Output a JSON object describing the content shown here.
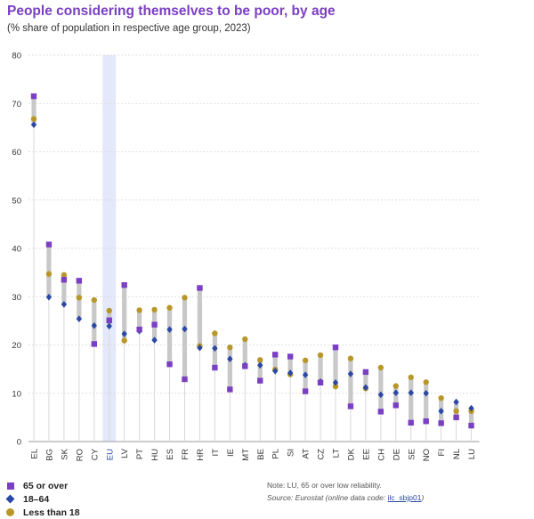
{
  "title": "People considering themselves to be poor, by age",
  "subtitle": "(% share of population in respective age group, 2023)",
  "colors": {
    "over65": "#7a3fc3",
    "age18_64": "#2b48a6",
    "under18": "#b8972a",
    "range": "#c8c8c8",
    "eu_highlight": "#e4e8fb",
    "eu_label": "#2b48a6"
  },
  "legend": [
    {
      "label": "65 or over",
      "shape": "square"
    },
    {
      "label": "18–64",
      "shape": "diamond"
    },
    {
      "label": "Less than 18",
      "shape": "circle"
    }
  ],
  "notes": {
    "note": "Note: LU, 65 or over low reliability.",
    "source_prefix": "Source: Eurostat (online data code: ",
    "source_code": "ilc_sbjp01",
    "source_suffix": ")"
  },
  "chart_data": {
    "type": "dot-range",
    "ylim": [
      0,
      80
    ],
    "yticks": [
      0,
      10,
      20,
      30,
      40,
      50,
      60,
      70,
      80
    ],
    "highlight_category": "EU",
    "categories": [
      "EL",
      "BG",
      "SK",
      "RO",
      "CY",
      "EU",
      "LV",
      "PT",
      "HU",
      "ES",
      "FR",
      "HR",
      "IT",
      "IE",
      "MT",
      "BE",
      "PL",
      "SI",
      "AT",
      "CZ",
      "LT",
      "DK",
      "EE",
      "CH",
      "DE",
      "SE",
      "NO",
      "FI",
      "NL",
      "LU"
    ],
    "series": [
      {
        "name": "65 or over",
        "marker": "square",
        "values": [
          71.5,
          40.8,
          33.5,
          33.3,
          20.2,
          25.1,
          32.4,
          23.2,
          24.2,
          16.0,
          12.9,
          31.8,
          15.3,
          10.8,
          15.6,
          12.6,
          18.0,
          17.6,
          10.4,
          12.2,
          19.5,
          7.3,
          14.4,
          6.2,
          7.5,
          3.9,
          4.2,
          3.8,
          5.0,
          3.3
        ]
      },
      {
        "name": "18–64",
        "marker": "diamond",
        "values": [
          65.6,
          29.9,
          28.4,
          25.4,
          24.0,
          23.9,
          22.3,
          22.9,
          21.0,
          23.2,
          23.3,
          19.4,
          19.3,
          17.1,
          15.8,
          15.8,
          14.6,
          14.2,
          13.8,
          12.4,
          12.2,
          14.0,
          11.2,
          9.7,
          10.1,
          10.1,
          10.0,
          6.3,
          8.2,
          6.9
        ]
      },
      {
        "name": "Less than 18",
        "marker": "circle",
        "values": [
          66.8,
          34.7,
          34.5,
          29.8,
          29.3,
          27.1,
          20.9,
          27.2,
          27.3,
          27.7,
          29.8,
          19.8,
          22.4,
          19.5,
          21.2,
          16.9,
          14.9,
          13.9,
          16.8,
          17.9,
          11.4,
          17.2,
          11.0,
          15.3,
          11.5,
          13.3,
          12.3,
          9.0,
          6.3,
          6.3
        ]
      }
    ]
  }
}
